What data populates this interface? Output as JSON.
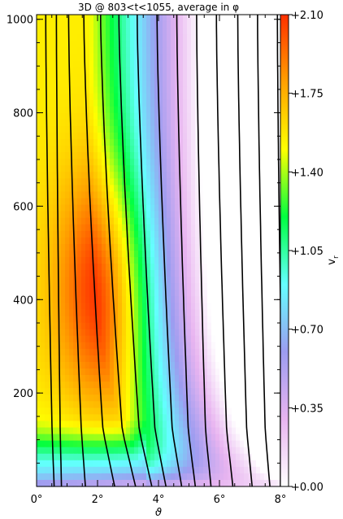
{
  "chart_data": {
    "type": "heatmap",
    "title": "3D @ 803<t<1055, average in φ",
    "xlabel": "ϑ",
    "ylabel": "",
    "xlim": [
      0,
      8
    ],
    "ylim": [
      0,
      1010
    ],
    "x_ticks": [
      {
        "value": 0,
        "label": "0°"
      },
      {
        "value": 2,
        "label": "2°"
      },
      {
        "value": 4,
        "label": "4°"
      },
      {
        "value": 6,
        "label": "6°"
      },
      {
        "value": 8,
        "label": "8°"
      }
    ],
    "y_ticks": [
      {
        "value": 200,
        "label": "200"
      },
      {
        "value": 400,
        "label": "400"
      },
      {
        "value": 600,
        "label": "600"
      },
      {
        "value": 800,
        "label": "800"
      },
      {
        "value": 1000,
        "label": "1000"
      }
    ],
    "colorbar": {
      "label": "v_r",
      "range": [
        0.0,
        2.1
      ],
      "ticks": [
        {
          "value": 0.0,
          "label": "+0.00"
        },
        {
          "value": 0.35,
          "label": "+0.35"
        },
        {
          "value": 0.7,
          "label": "+0.70"
        },
        {
          "value": 1.05,
          "label": "+1.05"
        },
        {
          "value": 1.4,
          "label": "+1.40"
        },
        {
          "value": 1.75,
          "label": "+1.75"
        },
        {
          "value": 2.1,
          "label": "+2.10"
        }
      ],
      "colors": [
        "#ffffff",
        "#e8b4f0",
        "#9c9cf0",
        "#64ffff",
        "#00ff40",
        "#ffff00",
        "#ffa000",
        "#ff3000"
      ]
    },
    "field_lines": {
      "x_at_top": [
        0.3,
        0.65,
        1.05,
        1.55,
        2.1,
        2.7,
        3.3,
        3.95,
        4.6,
        5.25,
        5.9,
        6.6,
        7.25,
        7.9
      ],
      "x_at_bottom": [
        0.55,
        0.8,
        1.55,
        2.3,
        2.95,
        3.5,
        4.0,
        4.55,
        5.05,
        5.6,
        6.3,
        6.95,
        7.55,
        8.1
      ]
    }
  }
}
